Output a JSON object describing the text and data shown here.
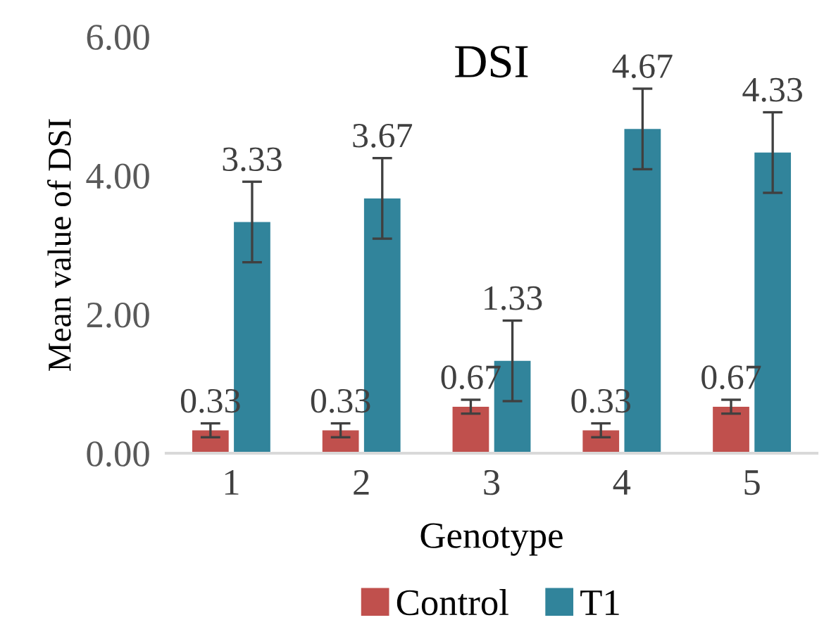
{
  "chart_data": {
    "type": "bar",
    "title": "DSI",
    "xlabel": "Genotype",
    "ylabel": "Mean value of DSI",
    "categories": [
      "1",
      "2",
      "3",
      "4",
      "5"
    ],
    "series": [
      {
        "name": "Control",
        "color": "#c0504d",
        "values": [
          0.33,
          0.33,
          0.67,
          0.33,
          0.67
        ],
        "errors": [
          0.1,
          0.1,
          0.1,
          0.1,
          0.1
        ]
      },
      {
        "name": "T1",
        "color": "#31849b",
        "values": [
          3.33,
          3.67,
          1.33,
          4.67,
          4.33
        ],
        "errors": [
          0.58,
          0.58,
          0.58,
          0.58,
          0.58
        ]
      }
    ],
    "ylim": [
      0,
      6
    ],
    "yticks": [
      {
        "value": 0,
        "label": "0.00"
      },
      {
        "value": 2,
        "label": "2.00"
      },
      {
        "value": 4,
        "label": "4.00"
      },
      {
        "value": 6,
        "label": "6.00"
      }
    ],
    "data_labels": true,
    "grid": false,
    "legend": "bottom"
  }
}
